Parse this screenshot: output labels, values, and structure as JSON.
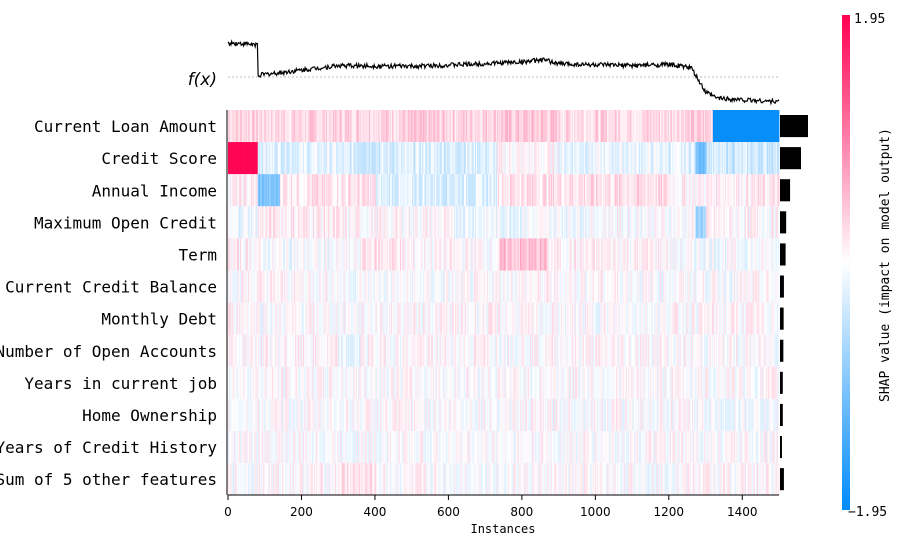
{
  "chart_data": {
    "type": "heatmap",
    "title": "",
    "xlabel": "Instances",
    "ylabel": "",
    "fx_label": "f(x)",
    "x_range": [
      0,
      1500
    ],
    "x_ticks": [
      "0",
      "200",
      "400",
      "600",
      "800",
      "1000",
      "1200",
      "1400"
    ],
    "x_tick_values": [
      0,
      200,
      400,
      600,
      800,
      1000,
      1200,
      1400
    ],
    "features": [
      "Current Loan Amount",
      "Credit Score",
      "Annual Income",
      "Maximum Open Credit",
      "Term",
      "Current Credit Balance",
      "Monthly Debt",
      "Number of Open Accounts",
      "Years in current job",
      "Home Ownership",
      "Years of Credit History",
      "Sum of 5 other features"
    ],
    "mean_abs_importance": [
      1.0,
      0.75,
      0.36,
      0.22,
      0.2,
      0.14,
      0.13,
      0.12,
      0.1,
      0.1,
      0.07,
      0.14
    ],
    "colorbar": {
      "label": "SHAP value (impact on model output)",
      "max_label": "1.95",
      "min_label": "−1.95",
      "max": 1.95,
      "min": -1.95,
      "high_color": "#ff0051",
      "low_color": "#008bfb"
    },
    "segments": [
      [
        [
          0,
          80,
          0.35
        ],
        [
          80,
          300,
          0.3
        ],
        [
          300,
          700,
          0.35
        ],
        [
          700,
          900,
          0.4
        ],
        [
          900,
          1200,
          0.3
        ],
        [
          1200,
          1320,
          0.35
        ],
        [
          1320,
          1500,
          -1.9
        ]
      ],
      [
        [
          0,
          80,
          1.9
        ],
        [
          80,
          300,
          -0.2
        ],
        [
          300,
          500,
          -0.3
        ],
        [
          500,
          730,
          -0.25
        ],
        [
          730,
          900,
          0.05
        ],
        [
          900,
          1200,
          -0.15
        ],
        [
          1200,
          1270,
          -0.2
        ],
        [
          1270,
          1300,
          -1.0
        ],
        [
          1300,
          1500,
          -0.35
        ]
      ],
      [
        [
          0,
          80,
          0.1
        ],
        [
          80,
          140,
          -1.0
        ],
        [
          140,
          400,
          0.2
        ],
        [
          400,
          730,
          -0.25
        ],
        [
          730,
          1200,
          0.25
        ],
        [
          1200,
          1320,
          0.1
        ],
        [
          1320,
          1500,
          0.15
        ]
      ],
      [
        [
          0,
          80,
          -0.1
        ],
        [
          80,
          300,
          0.15
        ],
        [
          300,
          600,
          0.05
        ],
        [
          600,
          800,
          -0.1
        ],
        [
          800,
          1000,
          -0.05
        ],
        [
          1000,
          1270,
          0.0
        ],
        [
          1270,
          1300,
          -0.7
        ],
        [
          1300,
          1500,
          0.05
        ]
      ],
      [
        [
          0,
          80,
          0.1
        ],
        [
          80,
          360,
          -0.05
        ],
        [
          360,
          470,
          0.2
        ],
        [
          470,
          740,
          0.05
        ],
        [
          740,
          870,
          0.45
        ],
        [
          870,
          1200,
          0.1
        ],
        [
          1200,
          1500,
          -0.05
        ]
      ],
      [
        [
          0,
          300,
          0.05
        ],
        [
          300,
          700,
          -0.05
        ],
        [
          700,
          1100,
          0.05
        ],
        [
          1100,
          1500,
          0.0
        ]
      ],
      [
        [
          0,
          80,
          0.1
        ],
        [
          80,
          400,
          0.0
        ],
        [
          400,
          800,
          0.05
        ],
        [
          800,
          1200,
          0.0
        ],
        [
          1200,
          1500,
          0.05
        ]
      ],
      [
        [
          0,
          300,
          0.05
        ],
        [
          300,
          360,
          -0.2
        ],
        [
          360,
          800,
          0.05
        ],
        [
          800,
          1200,
          0.05
        ],
        [
          1200,
          1500,
          0.0
        ]
      ],
      [
        [
          0,
          1500,
          0.02
        ]
      ],
      [
        [
          0,
          300,
          0.0
        ],
        [
          300,
          1000,
          0.02
        ],
        [
          1000,
          1300,
          0.0
        ],
        [
          1300,
          1500,
          -0.1
        ]
      ],
      [
        [
          0,
          1500,
          0.0
        ]
      ],
      [
        [
          0,
          80,
          0.0
        ],
        [
          80,
          300,
          0.05
        ],
        [
          300,
          400,
          0.2
        ],
        [
          400,
          1200,
          0.0
        ],
        [
          1200,
          1500,
          0.05
        ]
      ]
    ],
    "fx_curve": [
      [
        0,
        0.9
      ],
      [
        80,
        0.85
      ],
      [
        82,
        0.05
      ],
      [
        150,
        0.12
      ],
      [
        300,
        0.3
      ],
      [
        500,
        0.28
      ],
      [
        700,
        0.35
      ],
      [
        800,
        0.4
      ],
      [
        860,
        0.45
      ],
      [
        900,
        0.35
      ],
      [
        1000,
        0.32
      ],
      [
        1100,
        0.3
      ],
      [
        1200,
        0.33
      ],
      [
        1260,
        0.25
      ],
      [
        1300,
        -0.4
      ],
      [
        1330,
        -0.55
      ],
      [
        1400,
        -0.6
      ],
      [
        1500,
        -0.65
      ]
    ]
  }
}
